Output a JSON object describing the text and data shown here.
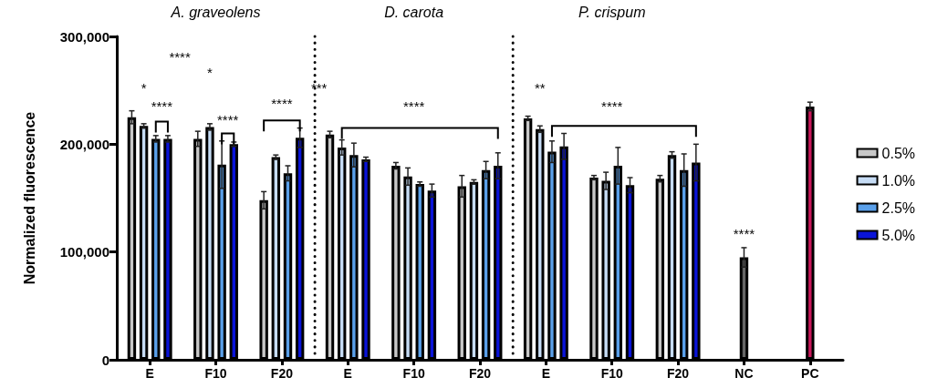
{
  "chart_data": {
    "type": "bar",
    "ylabel": "Normalized fluorescence",
    "categories": [
      "E",
      "F10",
      "F20",
      "E",
      "F10",
      "F20",
      "E",
      "F10",
      "F20",
      "NC",
      "PC"
    ],
    "series": [
      {
        "name": "0.5%",
        "color": "#c8c8c8",
        "values": [
          225000,
          205000,
          148000,
          209000,
          180000,
          161000,
          224000,
          169000,
          168000,
          null,
          null
        ],
        "errors": [
          6000,
          7000,
          8000,
          3000,
          3000,
          10000,
          2000,
          2000,
          3000,
          null,
          null
        ]
      },
      {
        "name": "1.0%",
        "color": "#c6dcf5",
        "values": [
          217000,
          216000,
          188000,
          197000,
          170000,
          165000,
          214000,
          166000,
          190000,
          null,
          null
        ],
        "errors": [
          2000,
          3000,
          2000,
          7000,
          8000,
          2000,
          3000,
          8000,
          3000,
          null,
          null
        ]
      },
      {
        "name": "2.5%",
        "color": "#5aa0ea",
        "values": [
          205000,
          181000,
          173000,
          190000,
          163000,
          176000,
          193000,
          180000,
          176000,
          null,
          null
        ],
        "errors": [
          3000,
          22000,
          7000,
          11000,
          2000,
          8000,
          10000,
          17000,
          15000,
          null,
          null
        ]
      },
      {
        "name": "5.0%",
        "color": "#0a14d8",
        "values": [
          205000,
          200000,
          206000,
          186000,
          157000,
          180000,
          198000,
          162000,
          183000,
          null,
          null
        ],
        "errors": [
          3000,
          2000,
          9000,
          2000,
          6000,
          12000,
          12000,
          7000,
          17000,
          null,
          null
        ]
      },
      {
        "colors": [
          null,
          null,
          null,
          null,
          null,
          null,
          null,
          null,
          null,
          "#666666",
          "#c8185a"
        ],
        "values": [
          null,
          null,
          null,
          null,
          null,
          null,
          null,
          null,
          null,
          95000,
          235000
        ],
        "errors": [
          null,
          null,
          null,
          null,
          null,
          null,
          null,
          null,
          null,
          9000,
          4000
        ]
      }
    ],
    "ylim": [
      0,
      300000
    ],
    "yticks": [
      {
        "value": 0,
        "label": "0"
      },
      {
        "value": 100000,
        "label": "100,000"
      },
      {
        "value": 200000,
        "label": "200,000"
      },
      {
        "value": 300000,
        "label": "300,000"
      }
    ],
    "grid": false,
    "legend": "right",
    "annotations": [
      "A. graveolens",
      "D. carota",
      "P. crispum",
      "*",
      "****",
      "****",
      "*",
      "****",
      "****",
      "***",
      "****",
      "**",
      "****",
      "****"
    ]
  }
}
